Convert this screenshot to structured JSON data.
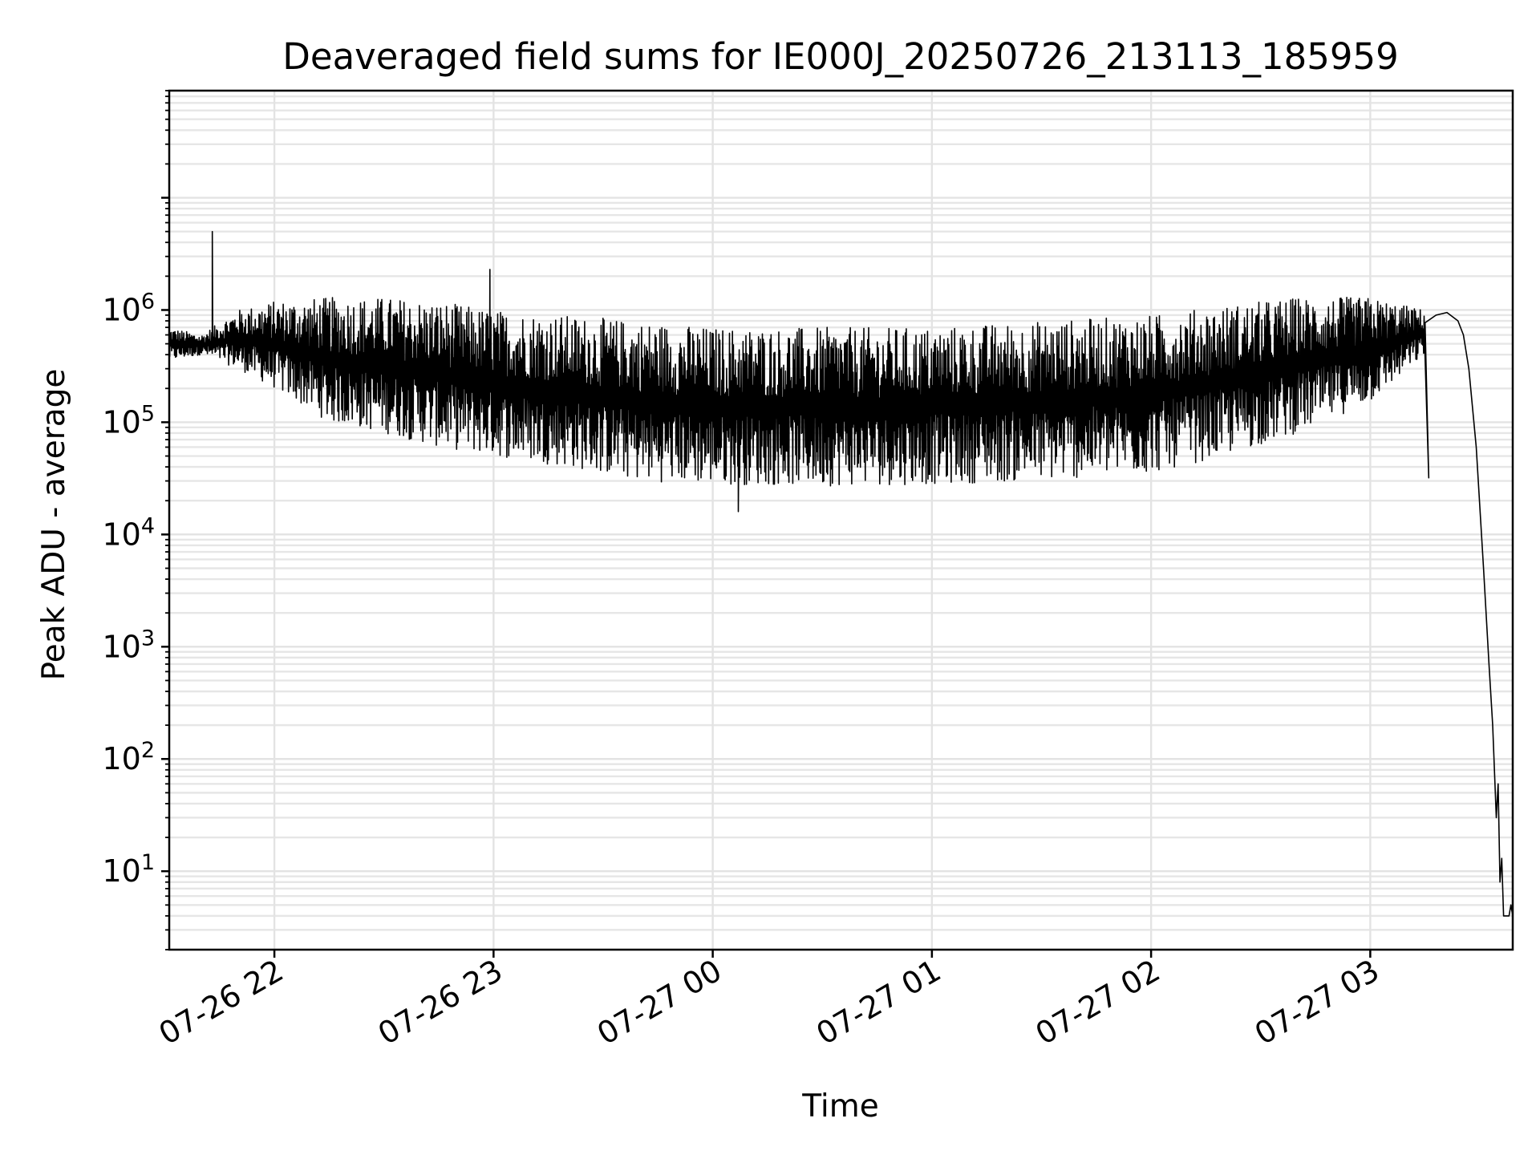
{
  "chart_data": {
    "type": "line",
    "title": "Deaveraged field sums for IE000J_20250726_213113_185959",
    "xlabel": "Time",
    "ylabel": "Peak ADU - average",
    "yscale": "log",
    "ylim": [
      2,
      90000000
    ],
    "xlim": [
      "2025-07-26T21:31:13",
      "2025-07-27T03:39:00"
    ],
    "grid": "major and minor, both axes",
    "x_ticks": [
      {
        "value": "2025-07-26T22:00:00",
        "label": "07-26 22"
      },
      {
        "value": "2025-07-26T23:00:00",
        "label": "07-26 23"
      },
      {
        "value": "2025-07-27T00:00:00",
        "label": "07-27 00"
      },
      {
        "value": "2025-07-27T01:00:00",
        "label": "07-27 01"
      },
      {
        "value": "2025-07-27T02:00:00",
        "label": "07-27 02"
      },
      {
        "value": "2025-07-27T03:00:00",
        "label": "07-27 03"
      }
    ],
    "y_ticks": [
      {
        "value": 10,
        "base": "10",
        "exp": "1"
      },
      {
        "value": 100,
        "base": "10",
        "exp": "2"
      },
      {
        "value": 1000,
        "base": "10",
        "exp": "3"
      },
      {
        "value": 10000,
        "base": "10",
        "exp": "4"
      },
      {
        "value": 100000,
        "base": "10",
        "exp": "5"
      },
      {
        "value": 1000000,
        "base": "10",
        "exp": "6"
      }
    ],
    "series": [
      {
        "color": "#000000",
        "envelope": {
          "x": [
            "2025-07-26T21:31:13",
            "2025-07-26T21:40:00",
            "2025-07-26T21:50:00",
            "2025-07-26T22:00:00",
            "2025-07-26T22:15:00",
            "2025-07-26T22:30:00",
            "2025-07-26T22:45:00",
            "2025-07-26T23:00:00",
            "2025-07-26T23:20:00",
            "2025-07-26T23:40:00",
            "2025-07-27T00:00:00",
            "2025-07-27T00:30:00",
            "2025-07-27T01:00:00",
            "2025-07-27T01:30:00",
            "2025-07-27T02:00:00",
            "2025-07-27T02:20:00",
            "2025-07-27T02:40:00",
            "2025-07-27T03:00:00",
            "2025-07-27T03:15:00"
          ],
          "upper": [
            700000,
            600000,
            1000000,
            1200000,
            1300000,
            1300000,
            1200000,
            1000000,
            900000,
            800000,
            700000,
            700000,
            700000,
            800000,
            900000,
            1100000,
            1300000,
            1300000,
            1000000
          ],
          "lower": [
            350000,
            400000,
            300000,
            200000,
            100000,
            80000,
            60000,
            50000,
            40000,
            30000,
            28000,
            27000,
            28000,
            30000,
            35000,
            50000,
            80000,
            150000,
            400000
          ]
        },
        "spikes": [
          {
            "x": "2025-07-26T21:43:00",
            "y": 5000000
          },
          {
            "x": "2025-07-26T22:59:00",
            "y": 2300000
          },
          {
            "x": "2025-07-27T00:07:00",
            "y": 16000
          },
          {
            "x": "2025-07-27T03:16:00",
            "y": 32000
          }
        ],
        "tail": {
          "x": [
            "2025-07-27T03:18:00",
            "2025-07-27T03:21:00",
            "2025-07-27T03:24:00",
            "2025-07-27T03:25:30",
            "2025-07-27T03:27:00",
            "2025-07-27T03:29:00",
            "2025-07-27T03:31:00",
            "2025-07-27T03:32:30",
            "2025-07-27T03:33:30",
            "2025-07-27T03:34:30",
            "2025-07-27T03:35:00",
            "2025-07-27T03:35:30",
            "2025-07-27T03:36:00",
            "2025-07-27T03:36:30",
            "2025-07-27T03:37:00",
            "2025-07-27T03:37:30",
            "2025-07-27T03:38:00",
            "2025-07-27T03:38:30",
            "2025-07-27T03:39:00"
          ],
          "y": [
            900000,
            950000,
            800000,
            600000,
            300000,
            60000,
            5000,
            700,
            200,
            30,
            60,
            8,
            13,
            4,
            4,
            4,
            4,
            5,
            4
          ]
        }
      }
    ]
  }
}
